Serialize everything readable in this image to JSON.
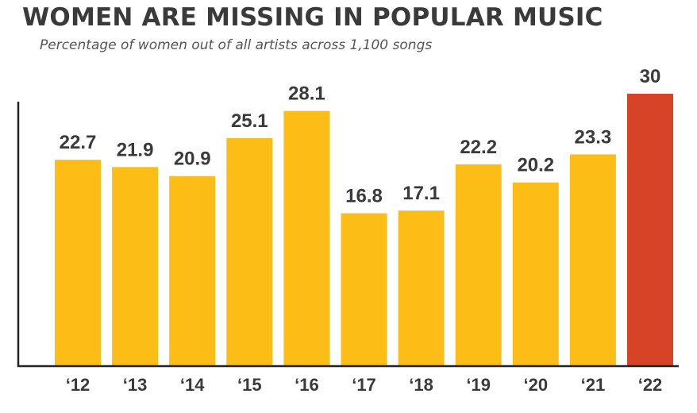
{
  "chart_data": {
    "type": "bar",
    "title": "WOMEN ARE MISSING IN POPULAR MUSIC",
    "subtitle": "Percentage of women out of all artists across 1,100 songs",
    "categories": [
      "‘12",
      "‘13",
      "‘14",
      "‘15",
      "‘16",
      "‘17",
      "‘18",
      "‘19",
      "‘20",
      "‘21",
      "‘22"
    ],
    "values": [
      22.7,
      21.9,
      20.9,
      25.1,
      28.1,
      16.8,
      17.1,
      22.2,
      20.2,
      23.3,
      30
    ],
    "data_labels": [
      "22.7",
      "21.9",
      "20.9",
      "25.1",
      "28.1",
      "16.8",
      "17.1",
      "22.2",
      "20.2",
      "23.3",
      "30"
    ],
    "xlabel": "",
    "ylabel": "",
    "ylim": [
      0,
      30
    ],
    "grid": false,
    "legend": "none",
    "colors": {
      "default_bar": "#FBBD16",
      "highlight_bar": "#D74327",
      "text": "#3a3a3a",
      "axis": "#222222"
    },
    "highlight_category": "‘22"
  }
}
